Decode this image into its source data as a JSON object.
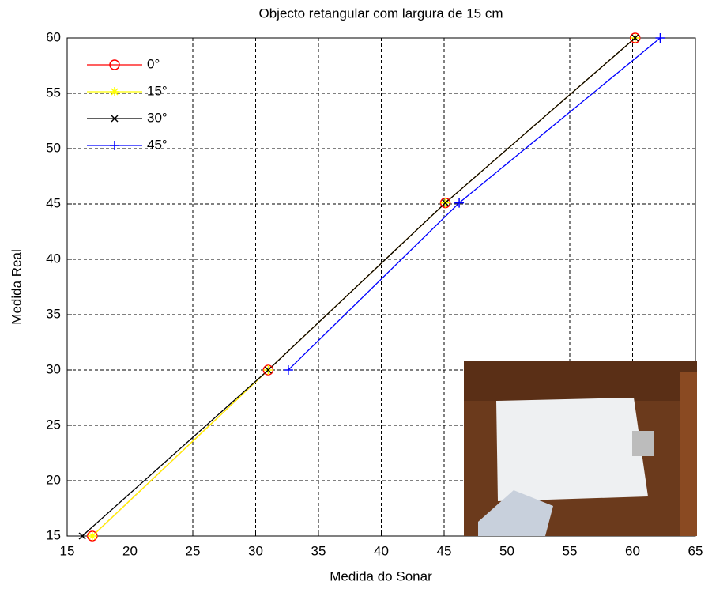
{
  "chart_data": {
    "type": "line",
    "title": "Objecto retangular com largura de 15 cm",
    "x_label": "Medida do Sonar",
    "y_label": "Medida Real",
    "xlim": [
      15,
      65
    ],
    "xticks": [
      15,
      20,
      25,
      30,
      35,
      40,
      45,
      50,
      55,
      60,
      65
    ],
    "ylim": [
      15,
      60
    ],
    "yticks": [
      15,
      20,
      25,
      30,
      35,
      40,
      45,
      50,
      55,
      60
    ],
    "grid": true,
    "legend": "upper left",
    "series": [
      {
        "name": "0°",
        "color": "#ff0000",
        "marker": "circle",
        "x": [
          17,
          31,
          45.1,
          60.2
        ],
        "values": [
          15,
          30,
          45.1,
          60
        ]
      },
      {
        "name": "15°",
        "color": "#ffff00",
        "marker": "star",
        "x": [
          17,
          31,
          45.1,
          60.2
        ],
        "values": [
          15,
          30,
          45.1,
          60
        ]
      },
      {
        "name": "30°",
        "color": "#000000",
        "marker": "x",
        "x": [
          16.2,
          31,
          45.1,
          60.2
        ],
        "values": [
          15,
          30,
          45.1,
          60
        ]
      },
      {
        "name": "45°",
        "color": "#0000ff",
        "marker": "plus",
        "x": [
          32.6,
          46.2,
          62.2
        ],
        "values": [
          30,
          45.1,
          60
        ]
      }
    ]
  }
}
